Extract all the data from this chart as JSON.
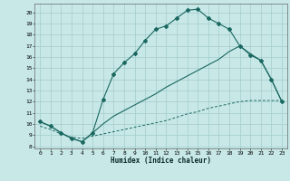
{
  "xlabel": "Humidex (Indice chaleur)",
  "background_color": "#c8e8e8",
  "grid_color": "#a8d0d0",
  "line_color": "#1a6860",
  "xlim": [
    -0.5,
    23.5
  ],
  "ylim": [
    7.8,
    20.8
  ],
  "yticks": [
    8,
    9,
    10,
    11,
    12,
    13,
    14,
    15,
    16,
    17,
    18,
    19,
    20
  ],
  "xticks": [
    0,
    1,
    2,
    3,
    4,
    5,
    6,
    7,
    8,
    9,
    10,
    11,
    12,
    13,
    14,
    15,
    16,
    17,
    18,
    19,
    20,
    21,
    22,
    23
  ],
  "curve1_x": [
    0,
    1,
    2,
    3,
    4,
    5,
    6,
    7,
    8,
    9,
    10,
    11,
    12,
    13,
    14,
    15,
    16,
    17,
    18,
    19,
    20,
    21,
    22,
    23
  ],
  "curve1_y": [
    10.2,
    9.8,
    9.2,
    8.7,
    8.4,
    9.2,
    12.2,
    14.5,
    15.5,
    16.3,
    17.5,
    18.5,
    18.8,
    19.5,
    20.2,
    20.3,
    19.5,
    19.0,
    18.5,
    17.0,
    16.2,
    15.7,
    14.0,
    12.0
  ],
  "curve2_x": [
    0,
    1,
    2,
    3,
    4,
    5,
    6,
    7,
    8,
    9,
    10,
    11,
    12,
    13,
    14,
    15,
    16,
    17,
    18,
    19,
    20,
    21,
    22,
    23
  ],
  "curve2_y": [
    10.2,
    9.8,
    9.2,
    8.7,
    8.4,
    9.2,
    10.0,
    10.7,
    11.2,
    11.7,
    12.2,
    12.7,
    13.3,
    13.8,
    14.3,
    14.8,
    15.3,
    15.8,
    16.5,
    17.0,
    16.3,
    15.7,
    14.0,
    12.0
  ],
  "curve3_x": [
    0,
    1,
    2,
    3,
    4,
    5,
    6,
    7,
    8,
    9,
    10,
    11,
    12,
    13,
    14,
    15,
    16,
    17,
    18,
    19,
    20,
    21,
    22,
    23
  ],
  "curve3_y": [
    9.8,
    9.5,
    9.1,
    8.8,
    8.7,
    8.9,
    9.1,
    9.3,
    9.5,
    9.7,
    9.9,
    10.1,
    10.3,
    10.6,
    10.9,
    11.1,
    11.4,
    11.6,
    11.8,
    12.0,
    12.1,
    12.1,
    12.1,
    12.1
  ]
}
